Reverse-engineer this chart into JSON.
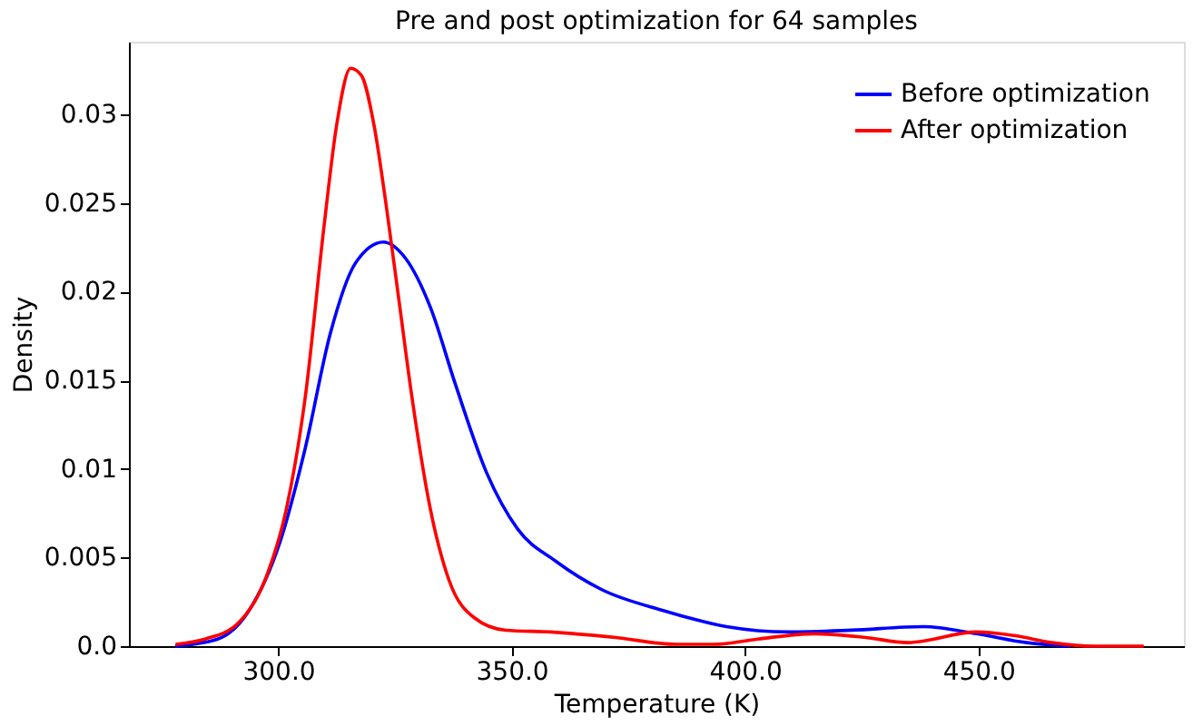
{
  "chart_data": {
    "type": "line",
    "title": "Pre and post optimization for 64 samples",
    "xlabel": "Temperature (K)",
    "ylabel": "Density",
    "xlim": [
      268,
      494
    ],
    "ylim": [
      0,
      0.0341
    ],
    "xticks": [
      {
        "value": 300,
        "label": "300.0"
      },
      {
        "value": 350,
        "label": "350.0"
      },
      {
        "value": 400,
        "label": "400.0"
      },
      {
        "value": 450,
        "label": "450.0"
      }
    ],
    "yticks": [
      {
        "value": 0,
        "label": "0.0"
      },
      0.005,
      0.01,
      0.015,
      0.02,
      0.025,
      0.03
    ],
    "grid": false,
    "legend": "top right",
    "marker": "none",
    "line_style": "solid",
    "series": [
      {
        "name": "Before optimization",
        "color": "#0000ff",
        "x": [
          277.9,
          287,
          293.7,
          300.4,
          305.8,
          311.1,
          316.5,
          322.5,
          327.2,
          332.6,
          337.9,
          344.6,
          351.3,
          359.4,
          369.2,
          382.6,
          396,
          409.4,
          422.8,
          438.2,
          449.6,
          460.3,
          469.7
        ],
        "values": [
          0,
          0.0004,
          0.002,
          0.0059,
          0.0112,
          0.0176,
          0.0216,
          0.0228,
          0.0219,
          0.0191,
          0.0148,
          0.0098,
          0.0066,
          0.0048,
          0.0032,
          0.002,
          0.0011,
          0.0008,
          0.0009,
          0.0011,
          0.0007,
          0.0002,
          0
        ]
      },
      {
        "name": "After optimization",
        "color": "#ff0000",
        "x": [
          278,
          284.3,
          291,
          297.7,
          301.7,
          305.8,
          309.8,
          312.5,
          315.5,
          317.8,
          320.5,
          323.2,
          325.9,
          328.6,
          332.6,
          336.6,
          342,
          348.7,
          358.4,
          371.8,
          385.3,
          393.3,
          402.7,
          414.7,
          425.5,
          434.9,
          449.6,
          457.6,
          465.7,
          475,
          485.4
        ],
        "values": [
          0.0001,
          0.0004,
          0.0012,
          0.0041,
          0.0077,
          0.0141,
          0.0237,
          0.0294,
          0.0326,
          0.0322,
          0.0294,
          0.0247,
          0.0194,
          0.0141,
          0.0077,
          0.0037,
          0.0016,
          0.0009,
          0.0008,
          0.0005,
          0.0001,
          0.0001,
          0.0004,
          0.0007,
          0.0005,
          0.0002,
          0.0008,
          0.0006,
          0.0002,
          0,
          0
        ]
      }
    ]
  }
}
